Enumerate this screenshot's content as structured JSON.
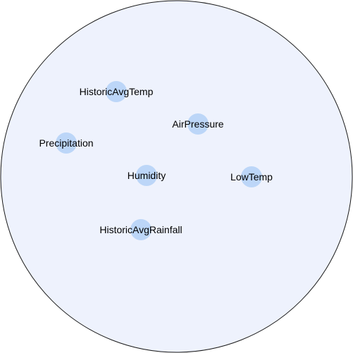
{
  "colors": {
    "container_fill": "#eef2fd",
    "container_stroke": "#1a1a1a",
    "node_fill": "#bcd6f8",
    "label_color": "#000000"
  },
  "nodes": [
    {
      "id": "historic-avg-temp",
      "label": "HistoricAvgTemp"
    },
    {
      "id": "air-pressure",
      "label": "AirPressure"
    },
    {
      "id": "precipitation",
      "label": "Precipitation"
    },
    {
      "id": "humidity",
      "label": "Humidity"
    },
    {
      "id": "low-temp",
      "label": "LowTemp"
    },
    {
      "id": "historic-avg-rainfall",
      "label": "HistoricAvgRainfall"
    }
  ]
}
